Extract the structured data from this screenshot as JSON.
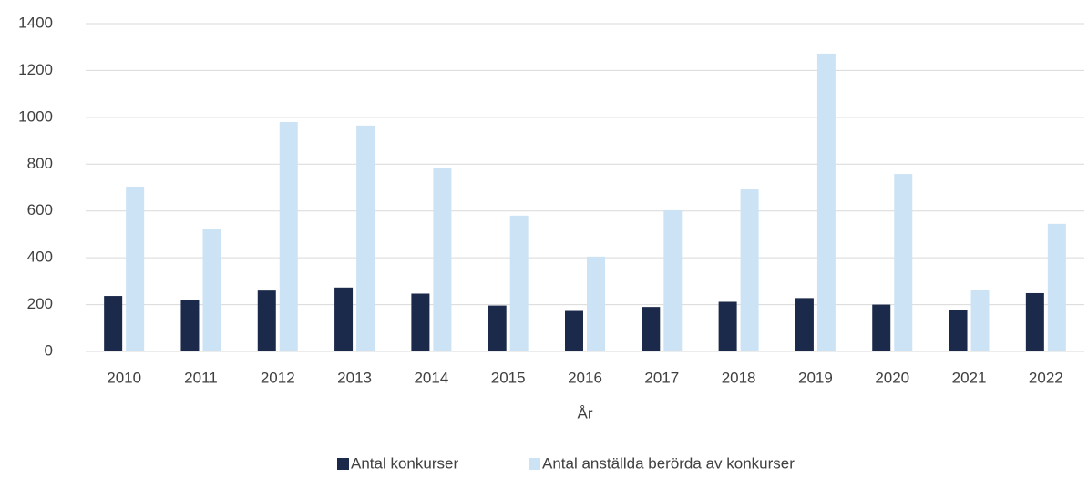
{
  "chart_data": {
    "type": "bar",
    "x_label": "År",
    "categories": [
      "2010",
      "2011",
      "2012",
      "2013",
      "2014",
      "2015",
      "2016",
      "2017",
      "2018",
      "2019",
      "2020",
      "2021",
      "2022"
    ],
    "series": [
      {
        "name": "Antal konkurser",
        "color": "#1b2a4a",
        "values": [
          237,
          221,
          260,
          273,
          247,
          196,
          173,
          190,
          212,
          228,
          200,
          175,
          249
        ]
      },
      {
        "name": "Antal anställda berörda av konkurser",
        "color": "#cce3f5",
        "values": [
          704,
          521,
          980,
          965,
          782,
          580,
          405,
          603,
          692,
          1272,
          758,
          264,
          545
        ]
      }
    ],
    "ylim": [
      0,
      1400
    ],
    "yticks": [
      0,
      200,
      400,
      600,
      800,
      1000,
      1200,
      1400
    ],
    "grid": true,
    "legend": "bottom"
  }
}
